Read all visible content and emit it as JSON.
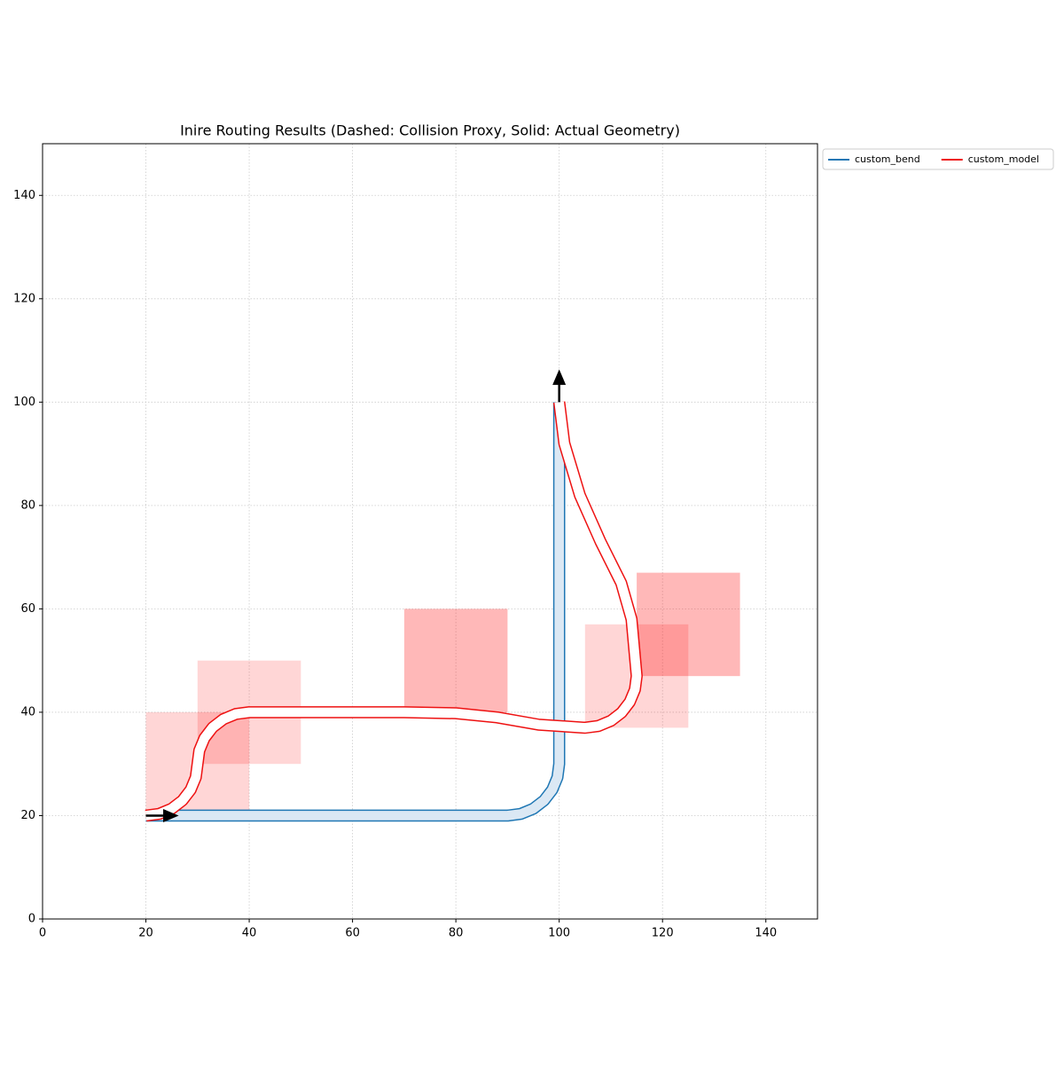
{
  "chart_data": {
    "type": "line",
    "title": "Inire Routing Results (Dashed: Collision Proxy, Solid: Actual Geometry)",
    "xlim": [
      0,
      150
    ],
    "ylim": [
      0,
      150
    ],
    "xticks": [
      0,
      20,
      40,
      60,
      80,
      100,
      120,
      140
    ],
    "yticks": [
      0,
      20,
      40,
      60,
      80,
      100,
      120,
      140
    ],
    "grid": true,
    "legend": "outside upper right",
    "boxes": [
      {
        "x": [
          20,
          40
        ],
        "y": [
          20,
          40
        ],
        "color": "rgba(255,0,0,0.16)"
      },
      {
        "x": [
          30,
          50
        ],
        "y": [
          30,
          50
        ],
        "color": "rgba(255,0,0,0.16)"
      },
      {
        "x": [
          70,
          90
        ],
        "y": [
          40,
          60
        ],
        "color": "rgba(255,0,0,0.28)"
      },
      {
        "x": [
          105,
          125
        ],
        "y": [
          37,
          57
        ],
        "color": "rgba(255,0,0,0.16)"
      },
      {
        "x": [
          115,
          135
        ],
        "y": [
          47,
          67
        ],
        "color": "rgba(255,0,0,0.28)"
      }
    ],
    "series": [
      {
        "name": "custom_bend",
        "color": "#1f77b4",
        "fill": "#dbe8f4",
        "x": [
          20,
          90,
          92.59,
          95,
          97.07,
          98.66,
          99.66,
          100,
          100
        ],
        "y": [
          20,
          20,
          20.34,
          21.34,
          22.93,
          25,
          27.41,
          30,
          100
        ]
      },
      {
        "name": "custom_model",
        "color": "#ee1111",
        "fill": "#ffffff",
        "x": [
          20,
          22.59,
          25,
          27.07,
          28.66,
          29.66,
          30,
          30.34,
          31.34,
          32.93,
          35,
          37.41,
          40,
          70,
          80,
          88,
          96,
          105,
          107.59,
          110,
          112.07,
          113.66,
          114.66,
          115,
          114,
          112,
          108,
          104,
          101,
          100
        ],
        "y": [
          20,
          20.34,
          21.34,
          22.93,
          25,
          27.41,
          30,
          32.59,
          35,
          37.07,
          38.66,
          39.66,
          40,
          40,
          39.8,
          39,
          37.6,
          37,
          37.34,
          38.34,
          39.93,
          42,
          44.41,
          47,
          58,
          65,
          73,
          82,
          92,
          100
        ]
      }
    ]
  }
}
